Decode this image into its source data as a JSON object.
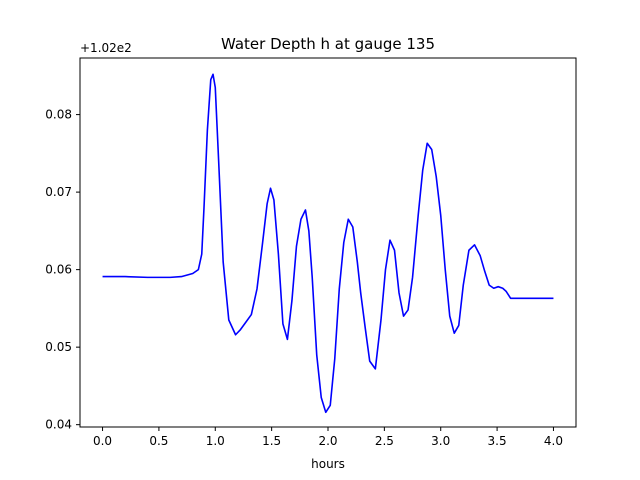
{
  "chart_data": {
    "type": "line",
    "title": "Water Depth h at gauge 135",
    "xlabel": "hours",
    "ylabel": "",
    "offset_label": "+1.02e2",
    "xlim": [
      -0.2,
      4.2
    ],
    "ylim": [
      0.0397,
      0.0873
    ],
    "xticks": [
      0.0,
      0.5,
      1.0,
      1.5,
      2.0,
      2.5,
      3.0,
      3.5,
      4.0
    ],
    "xtick_labels": [
      "0.0",
      "0.5",
      "1.0",
      "1.5",
      "2.0",
      "2.5",
      "3.0",
      "3.5",
      "4.0"
    ],
    "yticks": [
      0.04,
      0.05,
      0.06,
      0.07,
      0.08
    ],
    "ytick_labels": [
      "0.04",
      "0.05",
      "0.06",
      "0.07",
      "0.08"
    ],
    "grid": false,
    "legend": "none",
    "series": [
      {
        "color": "#0000ff",
        "x": [
          0.0,
          0.2,
          0.4,
          0.6,
          0.7,
          0.8,
          0.85,
          0.88,
          0.9,
          0.93,
          0.96,
          0.98,
          1.0,
          1.03,
          1.07,
          1.12,
          1.18,
          1.22,
          1.27,
          1.32,
          1.37,
          1.42,
          1.46,
          1.49,
          1.52,
          1.56,
          1.6,
          1.64,
          1.68,
          1.72,
          1.76,
          1.8,
          1.83,
          1.86,
          1.9,
          1.94,
          1.98,
          2.02,
          2.06,
          2.1,
          2.14,
          2.18,
          2.22,
          2.26,
          2.29,
          2.33,
          2.37,
          2.42,
          2.47,
          2.51,
          2.55,
          2.59,
          2.63,
          2.67,
          2.71,
          2.75,
          2.8,
          2.84,
          2.88,
          2.92,
          2.96,
          3.0,
          3.04,
          3.08,
          3.12,
          3.16,
          3.2,
          3.25,
          3.3,
          3.35,
          3.39,
          3.43,
          3.47,
          3.51,
          3.55,
          3.58,
          3.62,
          3.66,
          3.72,
          3.78,
          3.85,
          3.92,
          3.98,
          4.0
        ],
        "y": [
          0.0591,
          0.0591,
          0.059,
          0.059,
          0.0591,
          0.0595,
          0.06,
          0.062,
          0.068,
          0.078,
          0.0845,
          0.0852,
          0.0835,
          0.074,
          0.061,
          0.0535,
          0.0516,
          0.0522,
          0.0532,
          0.0542,
          0.0575,
          0.0635,
          0.0685,
          0.0705,
          0.069,
          0.062,
          0.053,
          0.051,
          0.056,
          0.063,
          0.0665,
          0.0677,
          0.065,
          0.059,
          0.049,
          0.0435,
          0.0416,
          0.0425,
          0.0485,
          0.0575,
          0.0635,
          0.0665,
          0.0655,
          0.061,
          0.057,
          0.0525,
          0.0482,
          0.0472,
          0.0535,
          0.06,
          0.0638,
          0.0625,
          0.057,
          0.054,
          0.0548,
          0.059,
          0.067,
          0.0728,
          0.0763,
          0.0755,
          0.072,
          0.067,
          0.06,
          0.054,
          0.0518,
          0.0528,
          0.058,
          0.0625,
          0.0632,
          0.0618,
          0.0598,
          0.058,
          0.0576,
          0.0578,
          0.0576,
          0.0572,
          0.0563,
          0.0563,
          0.0563,
          0.0563,
          0.0563,
          0.0563,
          0.0563,
          0.0563
        ]
      }
    ]
  }
}
